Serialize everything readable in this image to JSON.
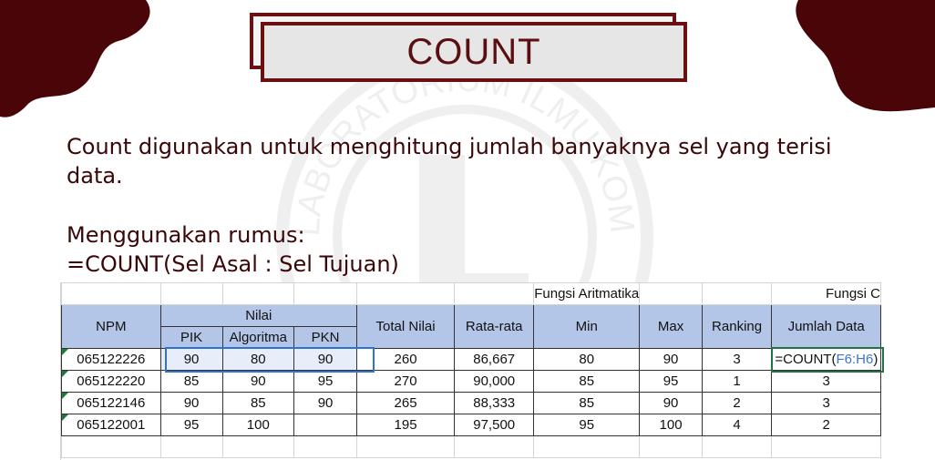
{
  "title": "COUNT",
  "description": "Count digunakan untuk menghitung jumlah banyaknya sel yang terisi data.",
  "rumus_label": "Menggunakan rumus:",
  "rumus_formula": "=COUNT(Sel Asal : Sel Tujuan)",
  "colors": {
    "maroon": "#4a0508",
    "title_border": "#6b0f12",
    "header_fill": "#b4c6e7",
    "formula_ref": "#3b73d8"
  },
  "sheet": {
    "group_headers": {
      "fungsi_aritmatika": "Fungsi Aritmatika",
      "fungsi_cut": "Fungsi C"
    },
    "headers": {
      "npm": "NPM",
      "nilai": "Nilai",
      "pik": "PIK",
      "algoritma": "Algoritma",
      "pkn": "PKN",
      "total": "Total Nilai",
      "rata": "Rata-rata",
      "min": "Min",
      "max": "Max",
      "ranking": "Ranking",
      "jumlah": "Jumlah Data"
    },
    "rows": [
      {
        "npm": "065122226",
        "pik": "90",
        "algoritma": "80",
        "pkn": "90",
        "total": "260",
        "rata": "86,667",
        "min": "80",
        "max": "90",
        "ranking": "3",
        "jumlah": ""
      },
      {
        "npm": "065122220",
        "pik": "85",
        "algoritma": "90",
        "pkn": "95",
        "total": "270",
        "rata": "90,000",
        "min": "85",
        "max": "95",
        "ranking": "1",
        "jumlah": "3"
      },
      {
        "npm": "065122146",
        "pik": "90",
        "algoritma": "85",
        "pkn": "90",
        "total": "265",
        "rata": "88,333",
        "min": "85",
        "max": "90",
        "ranking": "2",
        "jumlah": "3"
      },
      {
        "npm": "065122001",
        "pik": "95",
        "algoritma": "100",
        "pkn": "",
        "total": "195",
        "rata": "97,500",
        "min": "95",
        "max": "100",
        "ranking": "4",
        "jumlah": "2"
      }
    ],
    "formula": {
      "prefix": "=COUNT(",
      "ref": "F6:H6",
      "suffix": ")"
    }
  }
}
